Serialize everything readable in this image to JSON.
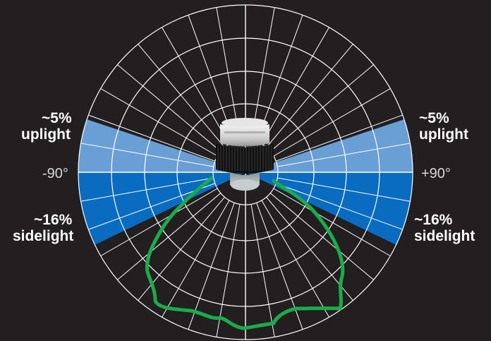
{
  "labels": {
    "left_uplight_pct": "~5%",
    "left_uplight_word": "uplight",
    "right_uplight_pct": "~5%",
    "right_uplight_word": "uplight",
    "left_sidelight_pct": "~16%",
    "left_sidelight_word": "sidelight",
    "right_sidelight_pct": "~16%",
    "right_sidelight_word": "sidelight",
    "left_angle": "-90°",
    "right_angle": "+90°"
  },
  "colors": {
    "background": "#231f20",
    "grid": "#ffffff",
    "uplight_zone": "#6a9fd6",
    "sidelight_zone": "#0a6cc0",
    "distribution_curve": "#1aab4b"
  },
  "icons": {
    "fixture": "led-high-bay-light-fixture"
  }
}
